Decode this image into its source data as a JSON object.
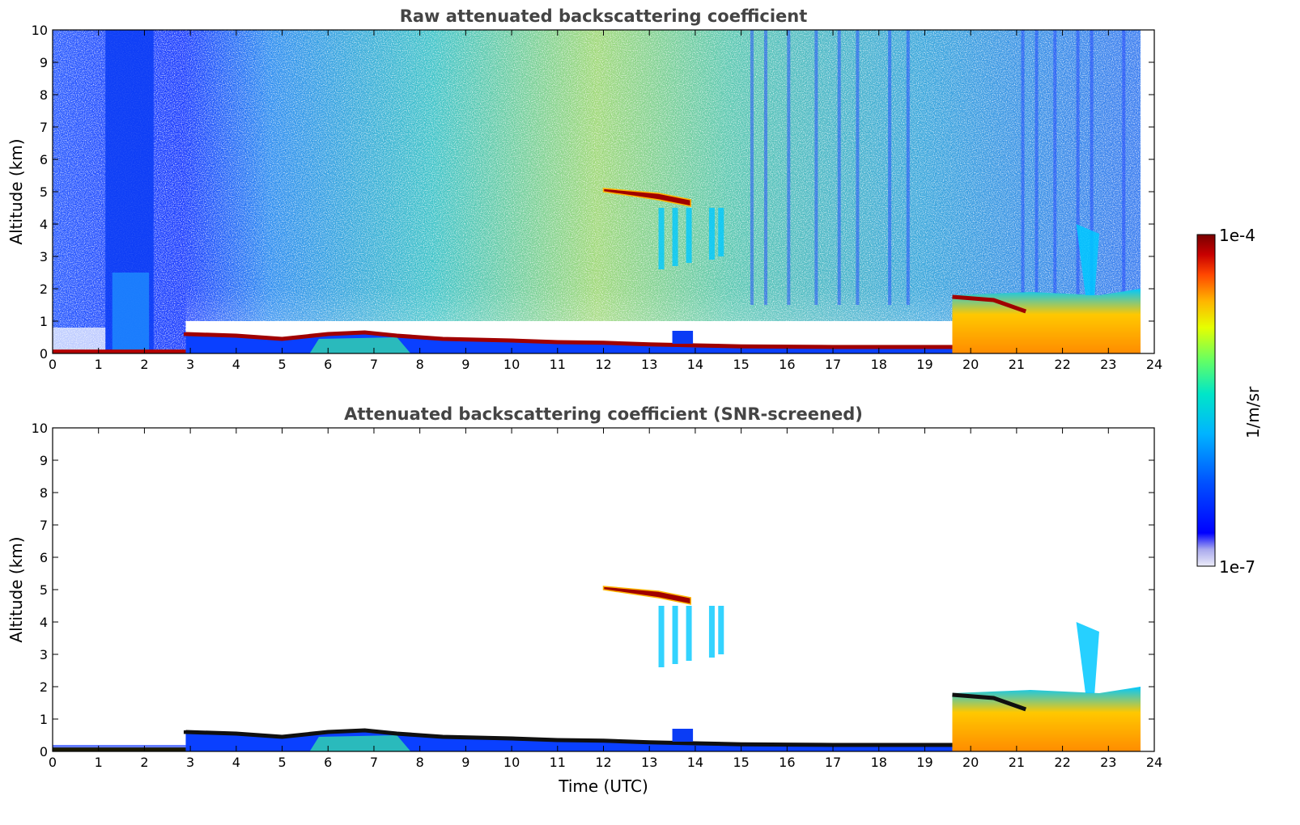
{
  "chart_data": [
    {
      "type": "heatmap",
      "title": "Raw attenuated backscattering coefficient",
      "ylabel": "Altitude (km)",
      "xlabel": "",
      "xlim": [
        0,
        24
      ],
      "ylim": [
        0,
        10
      ],
      "xticks": [
        0,
        1,
        2,
        3,
        4,
        5,
        6,
        7,
        8,
        9,
        10,
        11,
        12,
        13,
        14,
        15,
        16,
        17,
        18,
        19,
        20,
        21,
        22,
        23,
        24
      ],
      "yticks": [
        0,
        1,
        2,
        3,
        4,
        5,
        6,
        7,
        8,
        9,
        10
      ],
      "colorscale": "log",
      "features": [
        {
          "kind": "surface_layer",
          "time": [
            0,
            2.9
          ],
          "altitude_top": 0.1
        },
        {
          "kind": "boundary_layer_top",
          "time": [
            2.9,
            19.6
          ],
          "altitude_km": [
            0.6,
            0.5,
            0.55,
            0.7,
            0.6,
            0.45,
            0.4,
            0.35,
            0.3,
            0.28,
            0.25
          ]
        },
        {
          "kind": "elevated_aerosol_cloud",
          "time": [
            12.0,
            14.0
          ],
          "altitude_km": [
            5.1,
            4.6
          ]
        },
        {
          "kind": "low_cloud_precip",
          "time": [
            19.6,
            23.7
          ],
          "altitude_km": [
            0,
            2.0
          ]
        }
      ]
    },
    {
      "type": "heatmap",
      "title": "Attenuated backscattering coefficient (SNR-screened)",
      "ylabel": "Altitude (km)",
      "xlabel": "Time (UTC)",
      "xlim": [
        0,
        24
      ],
      "ylim": [
        0,
        10
      ],
      "xticks": [
        0,
        1,
        2,
        3,
        4,
        5,
        6,
        7,
        8,
        9,
        10,
        11,
        12,
        13,
        14,
        15,
        16,
        17,
        18,
        19,
        20,
        21,
        22,
        23,
        24
      ],
      "yticks": [
        0,
        1,
        2,
        3,
        4,
        5,
        6,
        7,
        8,
        9,
        10
      ],
      "colorscale": "log"
    }
  ],
  "colorbar": {
    "label": "1/m/sr",
    "max_label": "1e-4",
    "min_label": "1e-7",
    "colors": [
      "#e6e6f5",
      "#b4b4eb",
      "#0000ff",
      "#0050ff",
      "#00b4ff",
      "#00e6c8",
      "#64ff64",
      "#e6ff00",
      "#ffb400",
      "#ff4600",
      "#c80000",
      "#780000"
    ]
  }
}
